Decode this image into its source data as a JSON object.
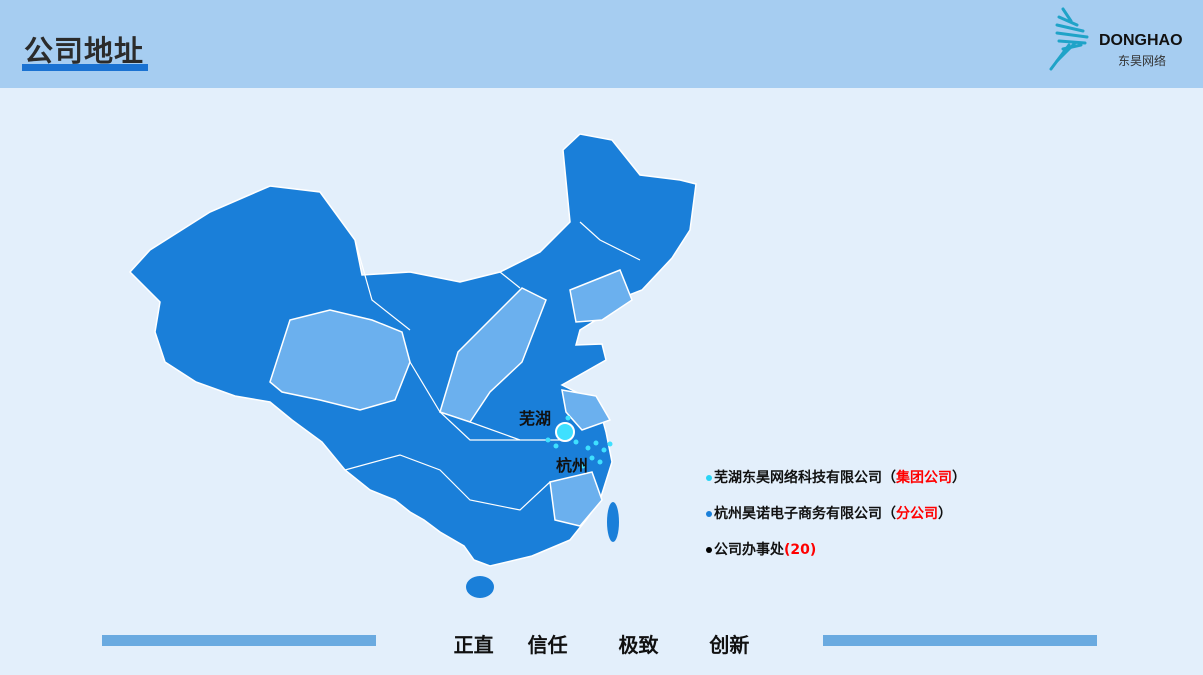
{
  "header": {
    "title": "公司地址",
    "logo": {
      "name": "DONGHAO",
      "subtitle": "东昊网络",
      "icon": "feather-wing-icon"
    }
  },
  "map": {
    "cities": [
      {
        "label": "芜湖"
      },
      {
        "label": "杭州"
      }
    ],
    "colors": {
      "province_dark": "#1a7fd9",
      "province_light": "#6bb0ee",
      "marker": "#3fe0ff"
    }
  },
  "legend": {
    "items": [
      {
        "name": "芜湖东昊网络科技有限公司",
        "tag": "（集团公司）",
        "tag_text": "集团公司",
        "dot_color": "#29d4f5"
      },
      {
        "name": "杭州昊诺电子商务有限公司",
        "tag_text": "分公司",
        "dot_color": "#1a7fd9"
      },
      {
        "name": "公司办事处",
        "count": "(20)",
        "dot_color": "#000000"
      }
    ]
  },
  "footer": {
    "slogan": "正直  信任   极致   创新"
  }
}
